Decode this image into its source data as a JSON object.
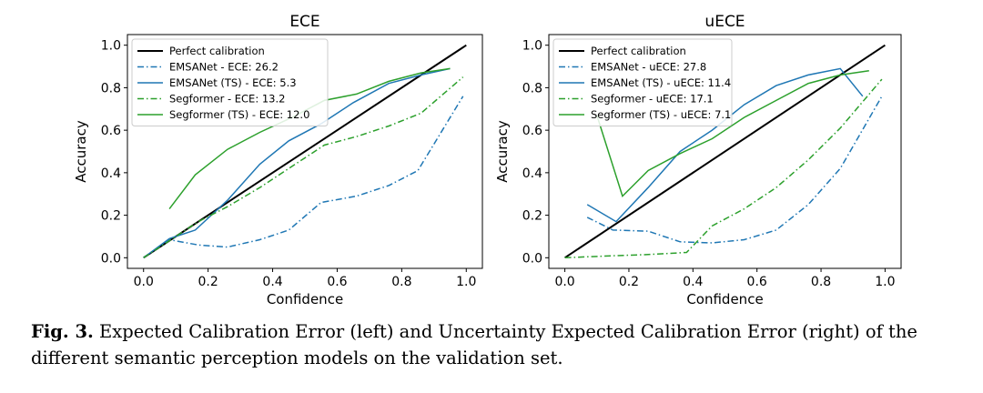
{
  "chart_data": [
    {
      "type": "line",
      "title": "ECE",
      "xlabel": "Confidence",
      "ylabel": "Accuracy",
      "xlim": [
        -0.05,
        1.05
      ],
      "ylim": [
        -0.05,
        1.05
      ],
      "xticks": [
        0.0,
        0.2,
        0.4,
        0.6,
        0.8,
        1.0
      ],
      "yticks": [
        0.0,
        0.2,
        0.4,
        0.6,
        0.8,
        1.0
      ],
      "tick_labels": [
        "0.0",
        "0.2",
        "0.4",
        "0.6",
        "0.8",
        "1.0"
      ],
      "legend_position": "top-left",
      "series": [
        {
          "name": "Perfect calibration",
          "color": "#000000",
          "style": "solid",
          "x": [
            0.0,
            1.0
          ],
          "y": [
            0.0,
            1.0
          ]
        },
        {
          "name": "EMSANet - ECE: 26.2",
          "color": "#1f77b4",
          "style": "dashdot",
          "x": [
            0.0,
            0.08,
            0.17,
            0.26,
            0.36,
            0.45,
            0.55,
            0.66,
            0.76,
            0.85,
            0.99
          ],
          "y": [
            0.0,
            0.085,
            0.06,
            0.05,
            0.085,
            0.13,
            0.26,
            0.29,
            0.34,
            0.41,
            0.76
          ]
        },
        {
          "name": "EMSANet (TS) - ECE: 5.3",
          "color": "#1f77b4",
          "style": "solid",
          "x": [
            0.0,
            0.08,
            0.16,
            0.26,
            0.36,
            0.45,
            0.55,
            0.65,
            0.76,
            0.86,
            0.95
          ],
          "y": [
            0.0,
            0.09,
            0.13,
            0.27,
            0.44,
            0.55,
            0.63,
            0.73,
            0.82,
            0.86,
            0.89
          ]
        },
        {
          "name": "Segformer - ECE: 13.2",
          "color": "#2ca02c",
          "style": "dashdot",
          "x": [
            0.0,
            0.08,
            0.17,
            0.26,
            0.36,
            0.46,
            0.56,
            0.66,
            0.76,
            0.86,
            0.99
          ],
          "y": [
            0.0,
            0.08,
            0.17,
            0.24,
            0.33,
            0.43,
            0.53,
            0.57,
            0.62,
            0.68,
            0.85
          ]
        },
        {
          "name": "Segformer (TS) - ECE: 12.0",
          "color": "#2ca02c",
          "style": "solid",
          "x": [
            0.08,
            0.16,
            0.26,
            0.36,
            0.46,
            0.56,
            0.66,
            0.76,
            0.86,
            0.95
          ],
          "y": [
            0.23,
            0.39,
            0.51,
            0.59,
            0.66,
            0.74,
            0.77,
            0.83,
            0.87,
            0.89
          ]
        }
      ]
    },
    {
      "type": "line",
      "title": "uECE",
      "xlabel": "Confidence",
      "ylabel": "Accuracy",
      "xlim": [
        -0.05,
        1.05
      ],
      "ylim": [
        -0.05,
        1.05
      ],
      "xticks": [
        0.0,
        0.2,
        0.4,
        0.6,
        0.8,
        1.0
      ],
      "yticks": [
        0.0,
        0.2,
        0.4,
        0.6,
        0.8,
        1.0
      ],
      "tick_labels": [
        "0.0",
        "0.2",
        "0.4",
        "0.6",
        "0.8",
        "1.0"
      ],
      "legend_position": "top-left",
      "series": [
        {
          "name": "Perfect calibration",
          "color": "#000000",
          "style": "solid",
          "x": [
            0.0,
            1.0
          ],
          "y": [
            0.0,
            1.0
          ]
        },
        {
          "name": "EMSANet - uECE: 27.8",
          "color": "#1f77b4",
          "style": "dashdot",
          "x": [
            0.07,
            0.15,
            0.26,
            0.36,
            0.46,
            0.56,
            0.66,
            0.76,
            0.86,
            0.99
          ],
          "y": [
            0.19,
            0.13,
            0.125,
            0.075,
            0.07,
            0.085,
            0.13,
            0.25,
            0.42,
            0.76
          ]
        },
        {
          "name": "EMSANet (TS) - uECE: 11.4",
          "color": "#1f77b4",
          "style": "solid",
          "x": [
            0.07,
            0.16,
            0.26,
            0.36,
            0.46,
            0.56,
            0.66,
            0.76,
            0.86,
            0.93
          ],
          "y": [
            0.25,
            0.17,
            0.33,
            0.5,
            0.6,
            0.72,
            0.81,
            0.86,
            0.89,
            0.76
          ]
        },
        {
          "name": "Segformer - uECE: 17.1",
          "color": "#2ca02c",
          "style": "dashdot",
          "x": [
            0.0,
            0.16,
            0.26,
            0.38,
            0.46,
            0.56,
            0.66,
            0.76,
            0.86,
            0.99
          ],
          "y": [
            0.0,
            0.01,
            0.015,
            0.025,
            0.15,
            0.23,
            0.33,
            0.46,
            0.61,
            0.84
          ]
        },
        {
          "name": "Segformer (TS) - uECE: 7.1",
          "color": "#2ca02c",
          "style": "solid",
          "x": [
            0.1,
            0.18,
            0.26,
            0.36,
            0.46,
            0.56,
            0.66,
            0.76,
            0.86,
            0.95
          ],
          "y": [
            0.67,
            0.29,
            0.41,
            0.49,
            0.56,
            0.66,
            0.74,
            0.82,
            0.86,
            0.88
          ]
        }
      ]
    }
  ],
  "caption": {
    "label": "Fig. 3.",
    "text": "Expected Calibration Error (left) and Uncertainty Expected Calibration Error (right) of the different semantic perception models on the validation set."
  }
}
